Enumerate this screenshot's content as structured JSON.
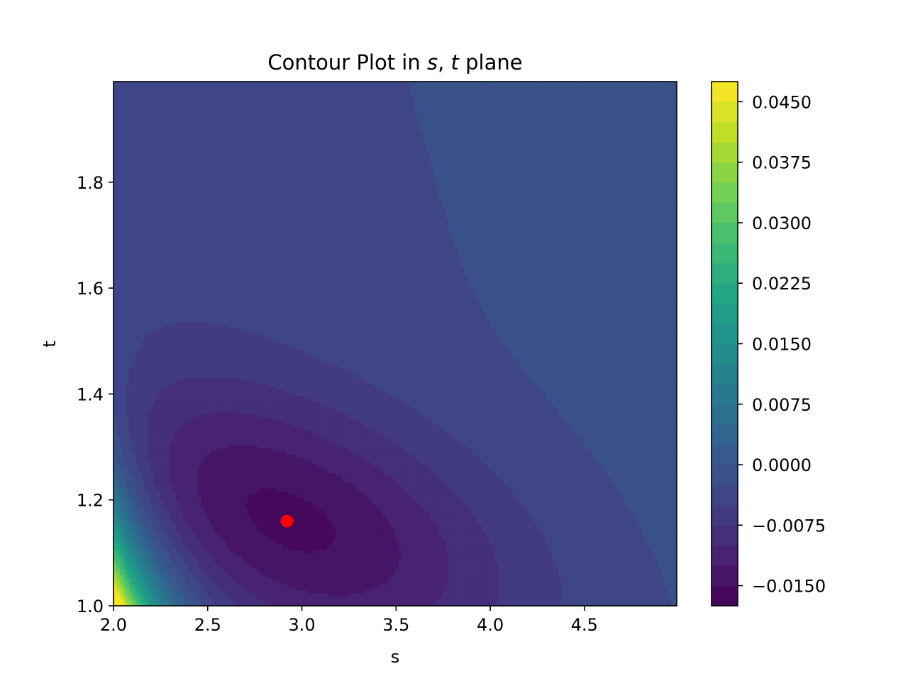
{
  "chart_data": {
    "type": "contourf",
    "title": "Contour Plot in s, t plane",
    "title_parts": {
      "prefix": "Contour Plot in ",
      "var1": "s",
      "sep": ", ",
      "var2": "t",
      "suffix": " plane"
    },
    "xlabel": "s",
    "ylabel": "t",
    "xlim": [
      2.0,
      4.99
    ],
    "ylim": [
      1.0,
      1.99
    ],
    "xticks": [
      2.0,
      2.5,
      3.0,
      3.5,
      4.0,
      4.5
    ],
    "xtick_labels": [
      "2.0",
      "2.5",
      "3.0",
      "3.5",
      "4.0",
      "4.5"
    ],
    "yticks": [
      1.0,
      1.2,
      1.4,
      1.6,
      1.8
    ],
    "ytick_labels": [
      "1.0",
      "1.2",
      "1.4",
      "1.6",
      "1.8"
    ],
    "colormap": "viridis",
    "level_step": 0.0025,
    "level_range": [
      -0.0175,
      0.0475
    ],
    "colorbar_ticks": [
      -0.015,
      -0.0075,
      0.0,
      0.0075,
      0.015,
      0.0225,
      0.03,
      0.0375,
      0.045
    ],
    "colorbar_tick_labels": [
      "−0.0150",
      "−0.0075",
      "0.0000",
      "0.0075",
      "0.0150",
      "0.0225",
      "0.0300",
      "0.0375",
      "0.0450"
    ],
    "minimum_point": {
      "s": 2.92,
      "t": 1.16,
      "color": "#ff0000"
    },
    "grid": false
  }
}
